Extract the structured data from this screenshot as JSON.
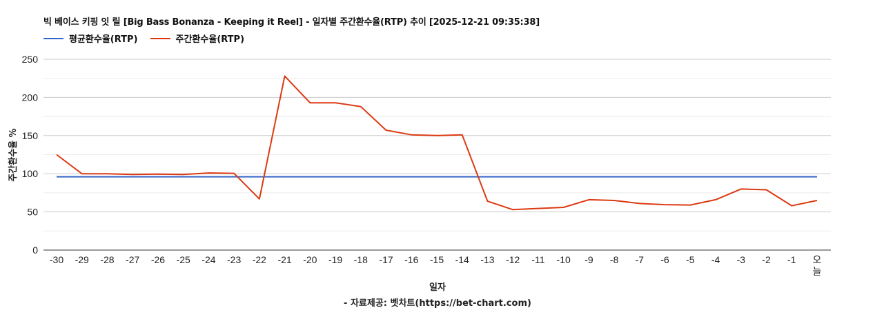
{
  "chart": {
    "title": "빅 베이스 키핑 잇 릴 [Big Bass Bonanza - Keeping it Reel] - 일자별 주간환수율(RTP) 추이 [2025-12-21 09:35:38]",
    "legend": [
      {
        "label": "평균환수율(RTP)",
        "color": "#3366cc"
      },
      {
        "label": "주간환수율(RTP)",
        "color": "#dc3912"
      }
    ],
    "y_axis_title": "주간환수율 %",
    "x_axis_title": "일자",
    "source": "- 자료제공: 벳차트(https://bet-chart.com)"
  },
  "chart_data": {
    "type": "line",
    "title": "빅 베이스 키핑 잇 릴 [Big Bass Bonanza - Keeping it Reel] - 일자별 주간환수율(RTP) 추이 [2025-12-21 09:35:38]",
    "xlabel": "일자",
    "ylabel": "주간환수율 %",
    "ylim": [
      0,
      250
    ],
    "yticks": [
      0,
      50,
      100,
      150,
      200,
      250
    ],
    "grid": true,
    "legend_position": "top-left",
    "categories": [
      "-30",
      "-29",
      "-28",
      "-27",
      "-26",
      "-25",
      "-24",
      "-23",
      "-22",
      "-21",
      "-20",
      "-19",
      "-18",
      "-17",
      "-16",
      "-15",
      "-14",
      "-13",
      "-12",
      "-11",
      "-10",
      "-9",
      "-8",
      "-7",
      "-6",
      "-5",
      "-4",
      "-3",
      "-2",
      "-1",
      "오늘"
    ],
    "series": [
      {
        "name": "평균환수율(RTP)",
        "color": "#3366cc",
        "values": [
          96,
          96,
          96,
          96,
          96,
          96,
          96,
          96,
          96,
          96,
          96,
          96,
          96,
          96,
          96,
          96,
          96,
          96,
          96,
          96,
          96,
          96,
          96,
          96,
          96,
          96,
          96,
          96,
          96,
          96,
          96
        ]
      },
      {
        "name": "주간환수율(RTP)",
        "color": "#dc3912",
        "values": [
          125,
          100,
          100,
          99,
          99.5,
          99,
          101,
          100.5,
          67,
          228,
          193,
          193,
          188,
          157,
          151,
          150,
          151,
          64,
          53,
          54.5,
          56,
          66,
          65,
          61,
          59.5,
          59,
          66,
          80,
          79,
          58,
          65
        ]
      }
    ]
  }
}
